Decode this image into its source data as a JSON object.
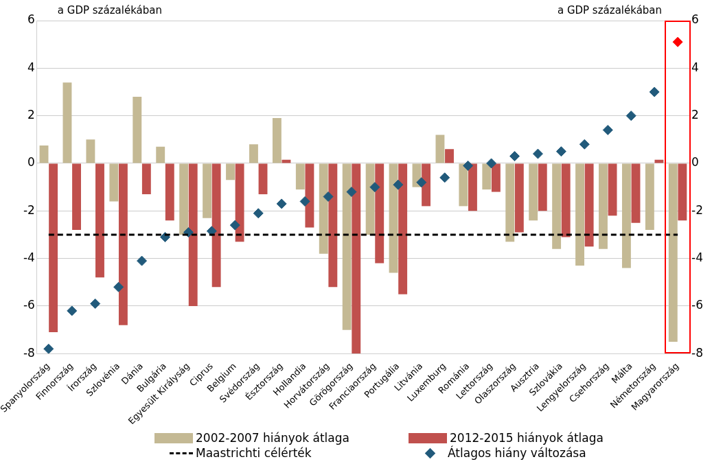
{
  "chart_data": {
    "type": "bar",
    "ylabel": "a GDP százalékában",
    "y2label": "a GDP százalékában",
    "categories": [
      "Spanyolország",
      "Finnország",
      "Írország",
      "Szlovénia",
      "Dánia",
      "Bulgária",
      "Egyesült Királyság",
      "Ciprus",
      "Belgium",
      "Svédország",
      "Észtország",
      "Hollandia",
      "Horvátország",
      "Görögország",
      "Franciaország",
      "Portugália",
      "Litvánia",
      "Luxemburg",
      "Románia",
      "Lettország",
      "Olaszország",
      "Ausztria",
      "Szlovákia",
      "Lengyelország",
      "Csehország",
      "Málta",
      "Németország",
      "Magyarország"
    ],
    "series": [
      {
        "name": "2002-2007 hiányok átlaga",
        "color": "#c4b994",
        "values": [
          0.75,
          3.4,
          1.0,
          -1.6,
          2.8,
          0.7,
          -3.0,
          -2.3,
          -0.7,
          0.8,
          1.9,
          -1.1,
          -3.8,
          -7.0,
          -3.0,
          -4.6,
          -1.0,
          1.2,
          -1.8,
          -1.1,
          -3.3,
          -2.4,
          -3.6,
          -4.3,
          -3.6,
          -4.4,
          -2.8,
          -7.5
        ]
      },
      {
        "name": "2012-2015 hiányok átlaga",
        "color": "#c0504d",
        "values": [
          -7.1,
          -2.8,
          -4.8,
          -6.8,
          -1.3,
          -2.4,
          -6.0,
          -5.2,
          -3.3,
          -1.3,
          0.15,
          -2.7,
          -5.2,
          -8.0,
          -4.2,
          -5.5,
          -1.8,
          0.6,
          -2.0,
          -1.2,
          -2.9,
          -2.0,
          -3.1,
          -3.5,
          -2.2,
          -2.5,
          0.15,
          -2.4
        ]
      },
      {
        "name": "Átlagos hiány változása",
        "type": "scatter",
        "color": "#215a7b",
        "colors": [
          "#215a7b",
          "#215a7b",
          "#215a7b",
          "#215a7b",
          "#215a7b",
          "#215a7b",
          "#215a7b",
          "#215a7b",
          "#215a7b",
          "#215a7b",
          "#215a7b",
          "#215a7b",
          "#215a7b",
          "#215a7b",
          "#215a7b",
          "#215a7b",
          "#215a7b",
          "#215a7b",
          "#215a7b",
          "#215a7b",
          "#215a7b",
          "#215a7b",
          "#215a7b",
          "#215a7b",
          "#215a7b",
          "#215a7b",
          "#215a7b",
          "#ff0000"
        ],
        "values": [
          -7.8,
          -6.2,
          -5.9,
          -5.2,
          -4.1,
          -3.1,
          -2.9,
          -2.85,
          -2.6,
          -2.1,
          -1.7,
          -1.6,
          -1.4,
          -1.2,
          -1.0,
          -0.9,
          -0.8,
          -0.6,
          -0.1,
          0.0,
          0.3,
          0.4,
          0.5,
          0.8,
          1.4,
          2.0,
          3.0,
          5.1
        ]
      }
    ],
    "ref_lines": [
      {
        "axis": "y",
        "value": -3,
        "label": "Maastrichti célérték",
        "color": "#000000",
        "line_style": "dashed"
      }
    ],
    "ylim": [
      -8,
      6
    ],
    "yticks": [
      -8,
      -6,
      -4,
      -2,
      0,
      2,
      4,
      6
    ],
    "y2lim": [
      -8,
      6
    ],
    "y2ticks": [
      -8,
      -6,
      -4,
      -2,
      0,
      2,
      4,
      6
    ],
    "grid": "y",
    "legend": "bottom",
    "marker": "diamond"
  }
}
